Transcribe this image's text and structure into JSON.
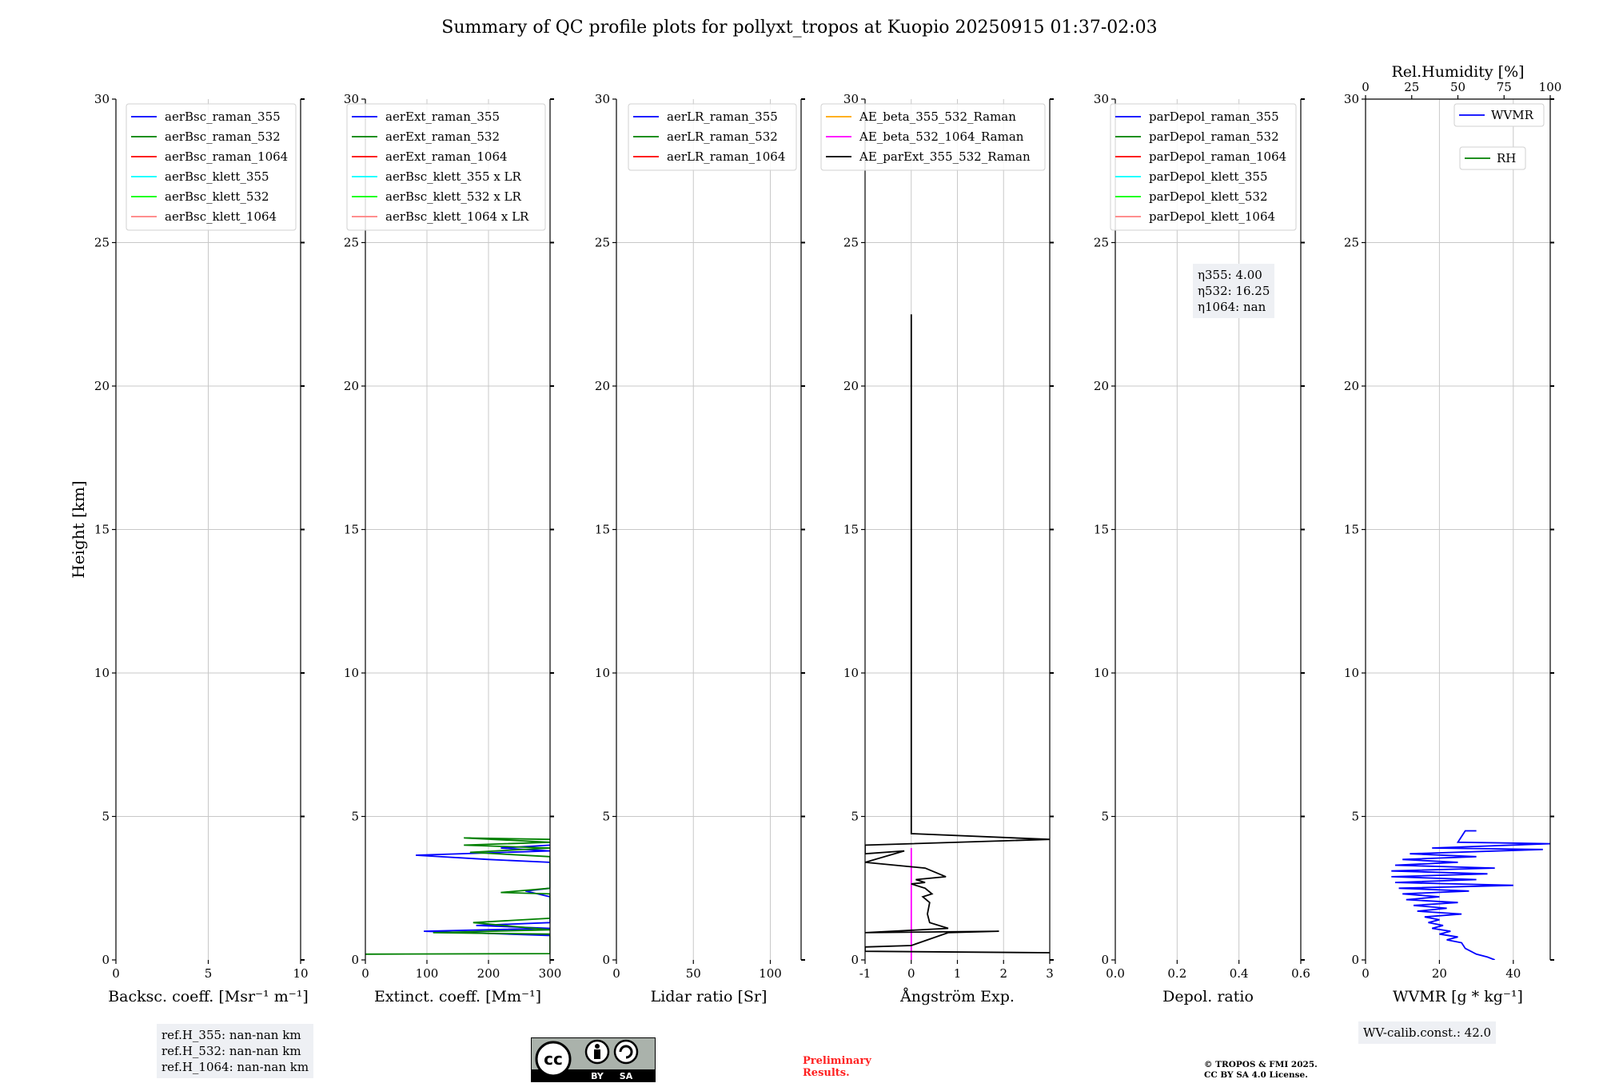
{
  "page": {
    "title": "Summary of QC profile plots for pollyxt_tropos at Kuopio 20250915 01:37-02:03",
    "ylabel": "Height [km]",
    "refH": [
      "ref.H_355: nan-nan km",
      "ref.H_532: nan-nan km",
      "ref.H_1064: nan-nan km"
    ],
    "eta": [
      "η355: 4.00",
      "η532: 16.25",
      "η1064: nan"
    ],
    "wv_calib": "WV-calib.const.: 42.0",
    "preliminary": [
      "Preliminary",
      "Results."
    ],
    "copyright": [
      "© TROPOS & FMI 2025.",
      "CC BY SA 4.0 License."
    ],
    "license_badge": [
      "cc",
      "BY",
      "SA"
    ]
  },
  "colors": {
    "raman_355": "#0000ff",
    "raman_532": "#008000",
    "raman_1064": "#ff0000",
    "klett_355": "#00ffff",
    "klett_532": "#00ff00",
    "klett_1064": "#ff7f7f",
    "ae_beta_355_532": "#ffa500",
    "ae_beta_532_1064": "#ff00ff",
    "ae_parext": "#000000",
    "grid": "#c8c8c8",
    "box_bg": "#eef0f4",
    "preliminary": "#ff2020"
  },
  "chart_data": [
    {
      "type": "line",
      "id": "bsc",
      "xlabel": "Backsc. coeff. [Msr⁻¹ m⁻¹]",
      "xlim": [
        0,
        10
      ],
      "xticks": [
        0,
        5,
        10
      ],
      "ylim": [
        0,
        30
      ],
      "yticks": [
        0,
        5,
        10,
        15,
        20,
        25,
        30
      ],
      "grid": true,
      "legend_loc": "upper-right",
      "series": [
        {
          "name": "aerBsc_raman_355",
          "color": "#0000ff",
          "points": []
        },
        {
          "name": "aerBsc_raman_532",
          "color": "#008000",
          "points": []
        },
        {
          "name": "aerBsc_raman_1064",
          "color": "#ff0000",
          "points": []
        },
        {
          "name": "aerBsc_klett_355",
          "color": "#00ffff",
          "points": []
        },
        {
          "name": "aerBsc_klett_532",
          "color": "#00ff00",
          "points": []
        },
        {
          "name": "aerBsc_klett_1064",
          "color": "#ff7f7f",
          "points": []
        }
      ]
    },
    {
      "type": "line",
      "id": "ext",
      "xlabel": "Extinct. coeff. [Mm⁻¹]",
      "xlim": [
        0,
        300
      ],
      "xticks": [
        0,
        100,
        200,
        300
      ],
      "ylim": [
        0,
        30
      ],
      "yticks": [
        0,
        5,
        10,
        15,
        20,
        25,
        30
      ],
      "grid": true,
      "legend_loc": "upper-right",
      "series": [
        {
          "name": "aerExt_raman_355",
          "color": "#0000ff",
          "points": [
            [
              300,
              0.85
            ],
            [
              95,
              1.0
            ],
            [
              300,
              1.1
            ],
            [
              180,
              1.2
            ],
            [
              300,
              1.3
            ],
            [
              300,
              2.2
            ],
            [
              260,
              2.4
            ],
            [
              300,
              2.5
            ],
            [
              300,
              3.4
            ],
            [
              200,
              3.5
            ],
            [
              82,
              3.65
            ],
            [
              300,
              3.8
            ],
            [
              220,
              3.9
            ],
            [
              300,
              4.0
            ]
          ]
        },
        {
          "name": "aerExt_raman_532",
          "color": "#008000",
          "points": [
            [
              0,
              0.2
            ],
            [
              300,
              0.22
            ],
            [
              300,
              0.9
            ],
            [
              110,
              0.95
            ],
            [
              300,
              1.05
            ],
            [
              175,
              1.3
            ],
            [
              300,
              1.45
            ],
            [
              300,
              2.3
            ],
            [
              220,
              2.35
            ],
            [
              300,
              2.5
            ],
            [
              300,
              3.6
            ],
            [
              170,
              3.75
            ],
            [
              300,
              3.9
            ],
            [
              160,
              4.0
            ],
            [
              300,
              4.1
            ],
            [
              160,
              4.25
            ],
            [
              300,
              4.2
            ]
          ]
        },
        {
          "name": "aerExt_raman_1064",
          "color": "#ff0000",
          "points": []
        },
        {
          "name": "aerBsc_klett_355 x LR",
          "color": "#00ffff",
          "points": []
        },
        {
          "name": "aerBsc_klett_532 x LR",
          "color": "#00ff00",
          "points": []
        },
        {
          "name": "aerBsc_klett_1064 x LR",
          "color": "#ff7f7f",
          "points": []
        }
      ]
    },
    {
      "type": "line",
      "id": "lr",
      "xlabel": "Lidar ratio [Sr]",
      "xlim": [
        0,
        120
      ],
      "xticks": [
        0,
        50,
        100
      ],
      "ylim": [
        0,
        30
      ],
      "yticks": [
        0,
        5,
        10,
        15,
        20,
        25,
        30
      ],
      "grid": true,
      "legend_loc": "upper-right",
      "series": [
        {
          "name": "aerLR_raman_355",
          "color": "#0000ff",
          "points": []
        },
        {
          "name": "aerLR_raman_532",
          "color": "#008000",
          "points": []
        },
        {
          "name": "aerLR_raman_1064",
          "color": "#ff0000",
          "points": []
        }
      ]
    },
    {
      "type": "line",
      "id": "ae",
      "xlabel": "Ångström Exp.",
      "xlim": [
        -1,
        3
      ],
      "xticks": [
        -1,
        0,
        1,
        2,
        3
      ],
      "ylim": [
        0,
        30
      ],
      "yticks": [
        0,
        5,
        10,
        15,
        20,
        25,
        30
      ],
      "grid": true,
      "legend_loc": "upper-right",
      "series": [
        {
          "name": "AE_beta_355_532_Raman",
          "color": "#ffa500",
          "points": []
        },
        {
          "name": "AE_beta_532_1064_Raman",
          "color": "#ff00ff",
          "points": [
            [
              0,
              0
            ],
            [
              0,
              3.9
            ]
          ]
        },
        {
          "name": "AE_parExt_355_532_Raman",
          "color": "#000000",
          "points": [
            [
              3,
              0.25
            ],
            [
              -1,
              0.3
            ],
            [
              -1,
              0.45
            ],
            [
              0,
              0.5
            ],
            [
              0.8,
              0.95
            ],
            [
              1.9,
              1.0
            ],
            [
              -1,
              0.95
            ],
            [
              0.8,
              1.1
            ],
            [
              0.4,
              1.3
            ],
            [
              0.35,
              1.6
            ],
            [
              0.4,
              2.0
            ],
            [
              0.25,
              2.2
            ],
            [
              0.45,
              2.3
            ],
            [
              0.3,
              2.5
            ],
            [
              0,
              2.65
            ],
            [
              0.3,
              2.7
            ],
            [
              0.1,
              2.8
            ],
            [
              0.75,
              2.9
            ],
            [
              0.3,
              3.2
            ],
            [
              -1,
              3.4
            ],
            [
              -0.15,
              3.8
            ],
            [
              -1,
              3.7
            ],
            [
              -1,
              4.0
            ],
            [
              3,
              4.2
            ],
            [
              0,
              4.4
            ],
            [
              0,
              22.5
            ]
          ]
        }
      ]
    },
    {
      "type": "line",
      "id": "depol",
      "xlabel": "Depol. ratio",
      "xlim": [
        0,
        0.6
      ],
      "xticks": [
        0.0,
        0.2,
        0.4,
        0.6
      ],
      "ylim": [
        0,
        30
      ],
      "yticks": [
        0,
        5,
        10,
        15,
        20,
        25,
        30
      ],
      "grid": true,
      "legend_loc": "upper-right",
      "series": [
        {
          "name": "parDepol_raman_355",
          "color": "#0000ff",
          "points": []
        },
        {
          "name": "parDepol_raman_532",
          "color": "#008000",
          "points": []
        },
        {
          "name": "parDepol_raman_1064",
          "color": "#ff0000",
          "points": []
        },
        {
          "name": "parDepol_klett_355",
          "color": "#00ffff",
          "points": []
        },
        {
          "name": "parDepol_klett_532",
          "color": "#00ff00",
          "points": []
        },
        {
          "name": "parDepol_klett_1064",
          "color": "#ff7f7f",
          "points": []
        }
      ]
    },
    {
      "type": "line",
      "id": "wv",
      "xlabel": "WVMR [g * kg⁻¹]",
      "xlim": [
        0,
        50
      ],
      "xticks": [
        0,
        20,
        40
      ],
      "x2label": "Rel.Humidity [%]",
      "x2lim": [
        0,
        100
      ],
      "x2ticks": [
        0,
        25,
        50,
        75,
        100
      ],
      "ylim": [
        0,
        30
      ],
      "yticks": [
        0,
        5,
        10,
        15,
        20,
        25,
        30
      ],
      "grid": true,
      "legend_loc": "upper-right",
      "series": [
        {
          "name": "WVMR",
          "color": "#0000ff",
          "points": [
            [
              35,
              0
            ],
            [
              33,
              0.1
            ],
            [
              30,
              0.2
            ],
            [
              27,
              0.4
            ],
            [
              26,
              0.6
            ],
            [
              22,
              0.7
            ],
            [
              25,
              0.8
            ],
            [
              20,
              0.9
            ],
            [
              23,
              1.0
            ],
            [
              18,
              1.1
            ],
            [
              21,
              1.2
            ],
            [
              17,
              1.3
            ],
            [
              20,
              1.4
            ],
            [
              16,
              1.5
            ],
            [
              26,
              1.6
            ],
            [
              14,
              1.7
            ],
            [
              22,
              1.8
            ],
            [
              13,
              1.9
            ],
            [
              25,
              2.0
            ],
            [
              11,
              2.1
            ],
            [
              20,
              2.2
            ],
            [
              10,
              2.3
            ],
            [
              28,
              2.4
            ],
            [
              9,
              2.5
            ],
            [
              40,
              2.6
            ],
            [
              8,
              2.7
            ],
            [
              30,
              2.8
            ],
            [
              7,
              2.9
            ],
            [
              33,
              3.0
            ],
            [
              7,
              3.1
            ],
            [
              35,
              3.2
            ],
            [
              8,
              3.3
            ],
            [
              25,
              3.4
            ],
            [
              10,
              3.5
            ],
            [
              30,
              3.6
            ],
            [
              12,
              3.7
            ],
            [
              48,
              3.85
            ],
            [
              18,
              3.9
            ],
            [
              50,
              4.05
            ],
            [
              25,
              4.1
            ],
            [
              27,
              4.5
            ],
            [
              30,
              4.5
            ]
          ]
        },
        {
          "name": "RH",
          "color": "#008000",
          "points": []
        }
      ]
    }
  ]
}
